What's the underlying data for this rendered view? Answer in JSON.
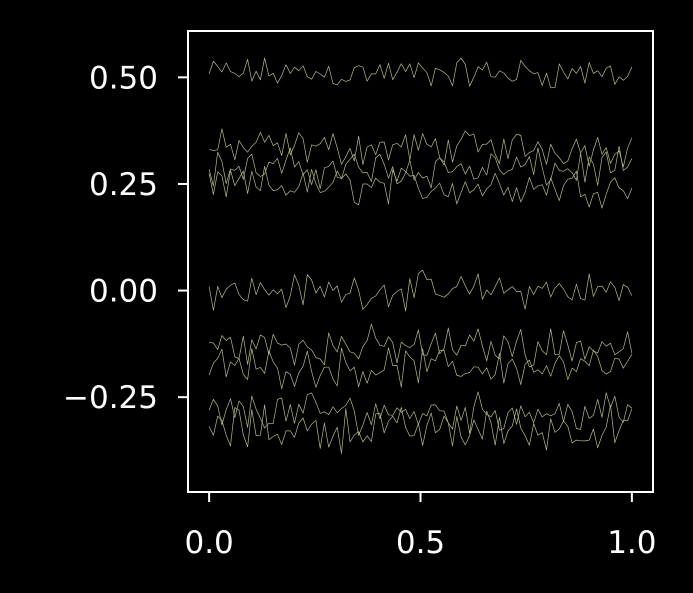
{
  "chart_data": {
    "type": "line",
    "title": "",
    "xlabel": "",
    "ylabel": "",
    "xlim": [
      -0.05,
      1.05
    ],
    "ylim": [
      -0.4724,
      0.6087
    ],
    "x_ticks": [
      0.0,
      0.5,
      1.0
    ],
    "x_tick_labels": [
      "0.0",
      "0.5",
      "1.0"
    ],
    "y_ticks": [
      0.5,
      0.25,
      0.0,
      -0.25
    ],
    "y_tick_labels": [
      "0.50",
      "0.25",
      "0.00",
      "−0.25"
    ],
    "grid": false,
    "legend": "none",
    "colors": {
      "background": "#000000",
      "axes": "#ffffff",
      "line": "#b8b88a"
    },
    "x_points": 100,
    "series": [
      {
        "center": 0.51,
        "noise": 0.028
      },
      {
        "center": 0.335,
        "noise": 0.032
      },
      {
        "center": 0.285,
        "noise": 0.035
      },
      {
        "center": 0.245,
        "noise": 0.035
      },
      {
        "center": 0.0,
        "noise": 0.032
      },
      {
        "center": -0.13,
        "noise": 0.035
      },
      {
        "center": -0.18,
        "noise": 0.035
      },
      {
        "center": -0.285,
        "noise": 0.035
      },
      {
        "center": -0.325,
        "noise": 0.04
      }
    ]
  }
}
